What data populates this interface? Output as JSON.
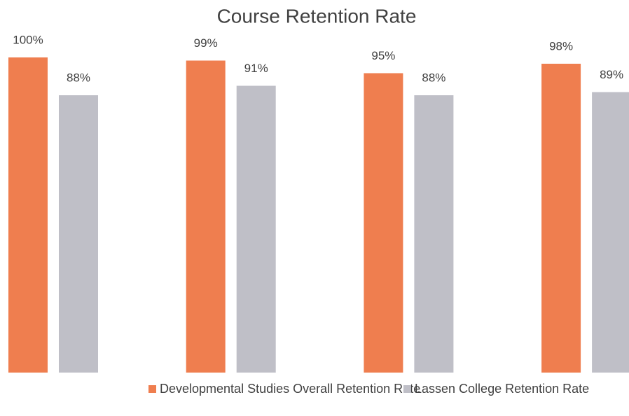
{
  "chart_data": {
    "type": "bar",
    "title": "Course Retention Rate",
    "categories": [
      null,
      null,
      null,
      null
    ],
    "series": [
      {
        "name": "Developmental Studies Overall Retention Rate",
        "color": "#ef7e4f",
        "values": [
          100,
          99,
          95,
          98
        ],
        "value_labels": [
          "100%",
          "99%",
          "95%",
          "98%"
        ]
      },
      {
        "name": "Lassen College Retention Rate",
        "color": "#bfbfc7",
        "values": [
          88,
          91,
          88,
          89
        ],
        "value_labels": [
          "88%",
          "91%",
          "88%",
          "89%"
        ]
      }
    ],
    "ylim": [
      0,
      100
    ],
    "legend": "bottom"
  }
}
